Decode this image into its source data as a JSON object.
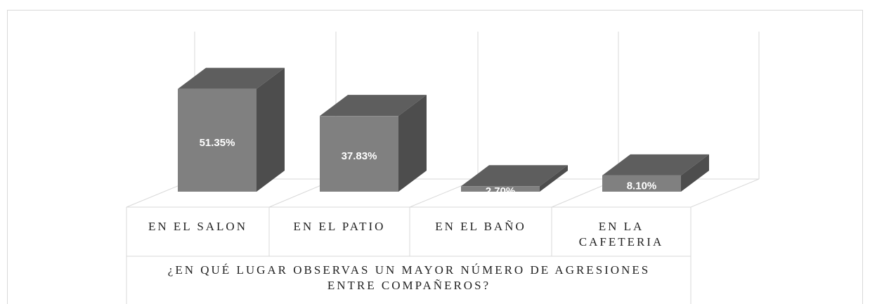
{
  "chart_data": {
    "type": "bar3d",
    "categories": [
      "EN EL SALON",
      "EN EL PATIO",
      "EN EL BAÑO",
      "EN LA CAFETERIA"
    ],
    "values": [
      51.35,
      37.83,
      2.7,
      8.1
    ],
    "value_labels": [
      "51.35%",
      "37.83%",
      "2.70%",
      "8.10%"
    ],
    "xlabel": "¿EN QUÉ LUGAR OBSERVAS UN MAYOR NÚMERO DE AGRESIONES ENTRE COMPAÑEROS?",
    "ylim": [
      0,
      80
    ],
    "color": "#808080"
  }
}
